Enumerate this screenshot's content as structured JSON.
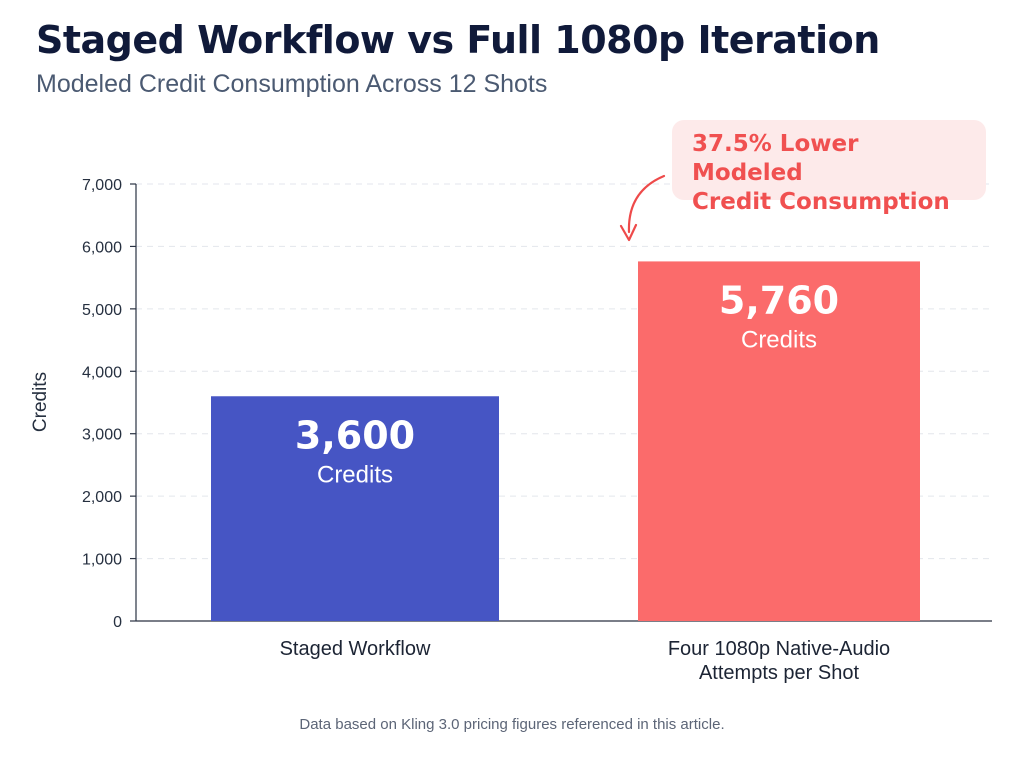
{
  "title": "Staged Workflow vs Full 1080p Iteration",
  "subtitle": "Modeled Credit Consumption Across 12 Shots",
  "callout": {
    "line1": "37.5% Lower Modeled",
    "line2": "Credit Consumption"
  },
  "footnote": "Data based on Kling 3.0 pricing figures referenced in this article.",
  "chart_data": {
    "type": "bar",
    "categories": [
      [
        "Staged Workflow"
      ],
      [
        "Four 1080p Native-Audio",
        "Attempts per Shot"
      ]
    ],
    "values": [
      3600,
      5760
    ],
    "value_labels": [
      "3,600",
      "5,760"
    ],
    "value_unit": "Credits",
    "ylabel": "Credits",
    "ylim": [
      0,
      7000
    ],
    "yticks": [
      0,
      1000,
      2000,
      3000,
      4000,
      5000,
      6000,
      7000
    ],
    "ytick_labels": [
      "0",
      "1,000",
      "2,000",
      "3,000",
      "4,000",
      "5,000",
      "6,000",
      "7,000"
    ],
    "grid": true,
    "colors": [
      "#4655c4",
      "#fb6b6b"
    ]
  }
}
